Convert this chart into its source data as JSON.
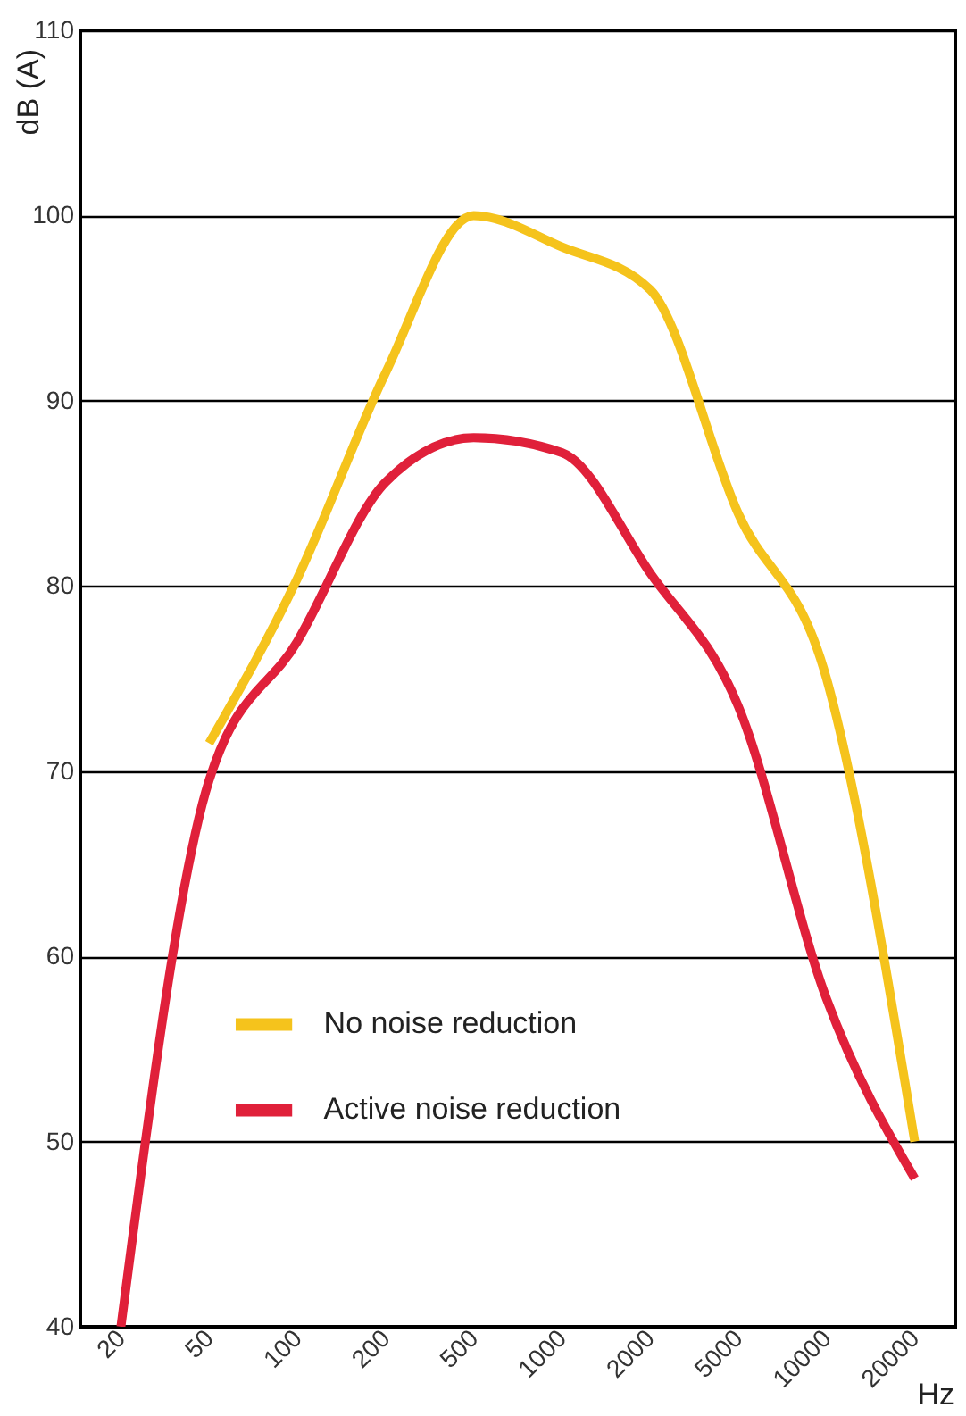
{
  "chart_data": {
    "type": "line",
    "xlabel": "Hz",
    "ylabel": "dB (A)",
    "categories": [
      "20",
      "50",
      "100",
      "200",
      "500",
      "1000",
      "2000",
      "5000",
      "10000",
      "20000"
    ],
    "ylim": [
      40,
      110
    ],
    "yticks": [
      40,
      50,
      60,
      70,
      80,
      90,
      100,
      110
    ],
    "grid": "y",
    "legend": "bottom left",
    "line_style": "solid",
    "series": [
      {
        "name": "No noise reduction",
        "color": "#f5c31c",
        "values": [
          null,
          71.5,
          80.4,
          91.5,
          100,
          98.3,
          96,
          83.9,
          75,
          50
        ]
      },
      {
        "name": "Active noise reduction",
        "color": "#e0203a",
        "values": [
          40,
          69.5,
          77,
          85.6,
          88,
          87.2,
          80.7,
          73.5,
          57.7,
          48
        ]
      }
    ]
  }
}
